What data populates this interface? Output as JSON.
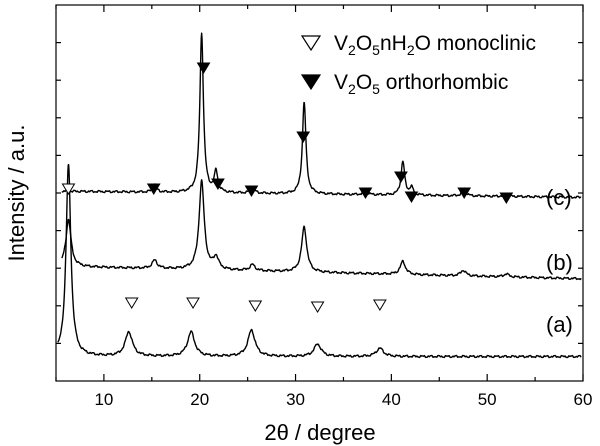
{
  "chart_data": {
    "type": "line",
    "title": "",
    "xlabel": "2θ / degree",
    "ylabel": "Intensity / a.u.",
    "xlim": [
      5,
      60
    ],
    "ylim": [
      0,
      10
    ],
    "x_ticks": [
      10,
      20,
      30,
      40,
      50,
      60
    ],
    "x_tick_labels": [
      "10",
      "20",
      "30",
      "40",
      "50",
      "60"
    ],
    "y_ticks_labeled": false,
    "legend": {
      "position": "top-right",
      "entries": [
        {
          "marker": "open-down-triangle",
          "parts": [
            {
              "text": "V",
              "sub": false
            },
            {
              "text": "2",
              "sub": true
            },
            {
              "text": "O",
              "sub": false
            },
            {
              "text": "5",
              "sub": true
            },
            {
              "text": "nH",
              "sub": false
            },
            {
              "text": "2",
              "sub": true
            },
            {
              "text": "O monoclinic",
              "sub": false
            }
          ]
        },
        {
          "marker": "filled-down-triangle",
          "parts": [
            {
              "text": "V",
              "sub": false
            },
            {
              "text": "2",
              "sub": true
            },
            {
              "text": "O",
              "sub": false
            },
            {
              "text": "5",
              "sub": true
            },
            {
              "text": " orthorhombic",
              "sub": false
            }
          ]
        }
      ]
    },
    "series": [
      {
        "name": "(a)",
        "label": "(a)",
        "baseline": 0.65,
        "slope": 0.0,
        "width": 0.45,
        "peaks": [
          [
            6.3,
            5.1
          ],
          [
            12.6,
            0.65
          ],
          [
            19.1,
            0.65
          ],
          [
            25.4,
            0.7
          ],
          [
            32.3,
            0.33
          ],
          [
            38.8,
            0.22
          ]
        ]
      },
      {
        "name": "(b)",
        "label": "(b)",
        "baseline": 3.05,
        "slope": -0.006,
        "width": 0.32,
        "peaks": [
          [
            6.3,
            1.25
          ],
          [
            15.3,
            0.22
          ],
          [
            20.2,
            2.35
          ],
          [
            21.7,
            0.32
          ],
          [
            25.5,
            0.16
          ],
          [
            30.9,
            1.2
          ],
          [
            41.2,
            0.35
          ],
          [
            47.5,
            0.15
          ],
          [
            52.0,
            0.08
          ]
        ]
      },
      {
        "name": "(c)",
        "label": "(c)",
        "baseline": 5.05,
        "slope": -0.003,
        "width": 0.22,
        "peaks": [
          [
            15.3,
            0.2
          ],
          [
            20.2,
            4.25
          ],
          [
            21.7,
            0.55
          ],
          [
            25.5,
            0.18
          ],
          [
            30.9,
            2.45
          ],
          [
            37.3,
            0.12
          ],
          [
            41.2,
            0.9
          ],
          [
            42.1,
            0.2
          ],
          [
            47.6,
            0.2
          ],
          [
            52.0,
            0.08
          ]
        ]
      }
    ],
    "annotations": [
      {
        "series": "(b)",
        "marker": "open-down-triangle",
        "x": [
          6.3
        ]
      },
      {
        "series": "(a)",
        "marker": "open-down-triangle",
        "x": [
          12.9,
          19.3,
          25.8,
          32.3,
          38.8
        ]
      },
      {
        "series": "(c)",
        "marker": "filled-down-triangle",
        "x": [
          15.2,
          20.4,
          21.9,
          25.4,
          30.8,
          37.3,
          41.0,
          42.1,
          47.6,
          52.0
        ]
      }
    ]
  }
}
